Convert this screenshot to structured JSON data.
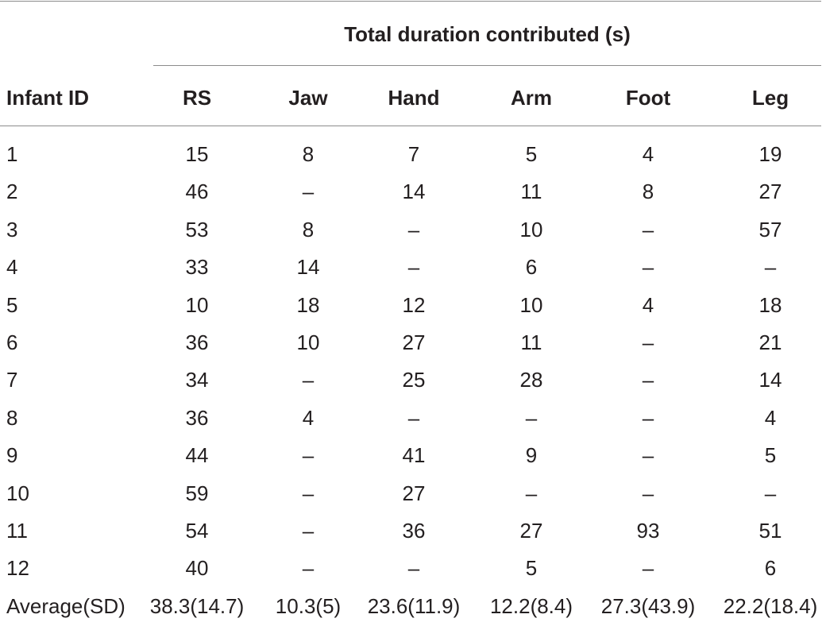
{
  "table": {
    "group_header": "Total duration contributed (s)",
    "columns": [
      "Infant ID",
      "RS",
      "Jaw",
      "Hand",
      "Arm",
      "Foot",
      "Leg"
    ],
    "rows": [
      [
        "1",
        "15",
        "8",
        "7",
        "5",
        "4",
        "19"
      ],
      [
        "2",
        "46",
        "–",
        "14",
        "11",
        "8",
        "27"
      ],
      [
        "3",
        "53",
        "8",
        "–",
        "10",
        "–",
        "57"
      ],
      [
        "4",
        "33",
        "14",
        "–",
        "6",
        "–",
        "–"
      ],
      [
        "5",
        "10",
        "18",
        "12",
        "10",
        "4",
        "18"
      ],
      [
        "6",
        "36",
        "10",
        "27",
        "11",
        "–",
        "21"
      ],
      [
        "7",
        "34",
        "–",
        "25",
        "28",
        "–",
        "14"
      ],
      [
        "8",
        "36",
        "4",
        "–",
        "–",
        "–",
        "4"
      ],
      [
        "9",
        "44",
        "–",
        "41",
        "9",
        "–",
        "5"
      ],
      [
        "10",
        "59",
        "–",
        "27",
        "–",
        "–",
        "–"
      ],
      [
        "11",
        "54",
        "–",
        "36",
        "27",
        "93",
        "51"
      ],
      [
        "12",
        "40",
        "–",
        "–",
        "5",
        "–",
        "6"
      ]
    ],
    "summary": [
      "Average(SD)",
      "38.3(14.7)",
      "10.3(5)",
      "23.6(11.9)",
      "12.2(8.4)",
      "27.3(43.9)",
      "22.2(18.4)"
    ]
  }
}
